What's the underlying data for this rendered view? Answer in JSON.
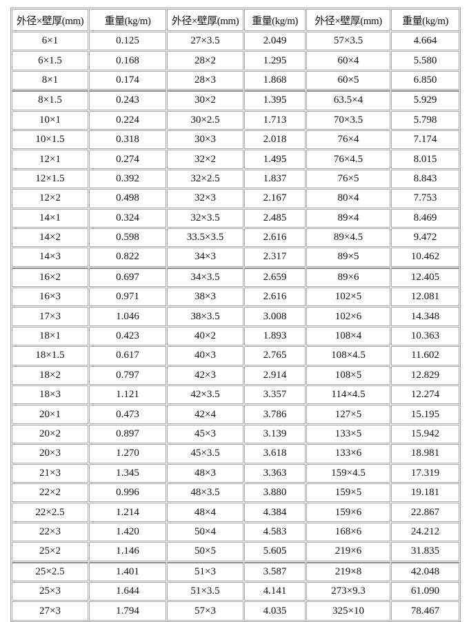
{
  "table": {
    "headers": [
      "外径×壁厚(mm)",
      "重量(kg/m)",
      "外径×壁厚(mm)",
      "重量(kg/m)",
      "外径×壁厚(mm)",
      "重量(kg/m)"
    ],
    "rows": [
      [
        "6×1",
        "0.125",
        "27×3.5",
        "2.049",
        "57×3.5",
        "4.664"
      ],
      [
        "6×1.5",
        "0.168",
        "28×2",
        "1.295",
        "60×4",
        "5.580"
      ],
      [
        "8×1",
        "0.174",
        "28×3",
        "1.868",
        "60×5",
        "6.850"
      ],
      [
        "8×1.5",
        "0.243",
        "30×2",
        "1.395",
        "63.5×4",
        "5.929"
      ],
      [
        "10×1",
        "0.224",
        "30×2.5",
        "1.713",
        "70×3.5",
        "5.798"
      ],
      [
        "10×1.5",
        "0.318",
        "30×3",
        "2.018",
        "76×4",
        "7.174"
      ],
      [
        "12×1",
        "0.274",
        "32×2",
        "1.495",
        "76×4.5",
        "8.015"
      ],
      [
        "12×1.5",
        "0.392",
        "32×2.5",
        "1.837",
        "76×5",
        "8.843"
      ],
      [
        "12×2",
        "0.498",
        "32×3",
        "2.167",
        "80×4",
        "7.753"
      ],
      [
        "14×1",
        "0.324",
        "32×3.5",
        "2.485",
        "89×4",
        "8.469"
      ],
      [
        "14×2",
        "0.598",
        "33.5×3.5",
        "2.616",
        "89×4.5",
        "9.472"
      ],
      [
        "14×3",
        "0.822",
        "34×3",
        "2.317",
        "89×5",
        "10.462"
      ],
      [
        "16×2",
        "0.697",
        "34×3.5",
        "2.659",
        "89×6",
        "12.405"
      ],
      [
        "16×3",
        "0.971",
        "38×3",
        "2.616",
        "102×5",
        "12.081"
      ],
      [
        "17×3",
        "1.046",
        "38×3.5",
        "3.008",
        "102×6",
        "14.348"
      ],
      [
        "18×1",
        "0.423",
        "40×2",
        "1.893",
        "108×4",
        "10.363"
      ],
      [
        "18×1.5",
        "0.617",
        "40×3",
        "2.765",
        "108×4.5",
        "11.602"
      ],
      [
        "18×2",
        "0.797",
        "42×3",
        "2.914",
        "108×5",
        "12.829"
      ],
      [
        "18×3",
        "1.121",
        "42×3.5",
        "3.357",
        "114×4.5",
        "12.274"
      ],
      [
        "20×1",
        "0.473",
        "42×4",
        "3.786",
        "127×5",
        "15.195"
      ],
      [
        "20×2",
        "0.897",
        "45×3",
        "3.139",
        "133×5",
        "15.942"
      ],
      [
        "20×3",
        "1.270",
        "45×3.5",
        "3.618",
        "133×6",
        "18.981"
      ],
      [
        "21×3",
        "1.345",
        "48×3",
        "3.363",
        "159×4.5",
        "17.319"
      ],
      [
        "22×2",
        "0.996",
        "48×3.5",
        "3.880",
        "159×5",
        "19.181"
      ],
      [
        "22×2.5",
        "1.214",
        "48×4",
        "4.384",
        "159×6",
        "22.867"
      ],
      [
        "22×3",
        "1.420",
        "50×4",
        "4.583",
        "168×6",
        "24.212"
      ],
      [
        "25×2",
        "1.146",
        "50×5",
        "5.605",
        "219×6",
        "31.835"
      ],
      [
        "25×2.5",
        "1.401",
        "51×3",
        "3.587",
        "219×8",
        "42.048"
      ],
      [
        "25×3",
        "1.644",
        "51×3.5",
        "4.141",
        "273×9.3",
        "61.090"
      ],
      [
        "27×3",
        "1.794",
        "57×3",
        "4.035",
        "325×10",
        "78.467"
      ]
    ]
  }
}
